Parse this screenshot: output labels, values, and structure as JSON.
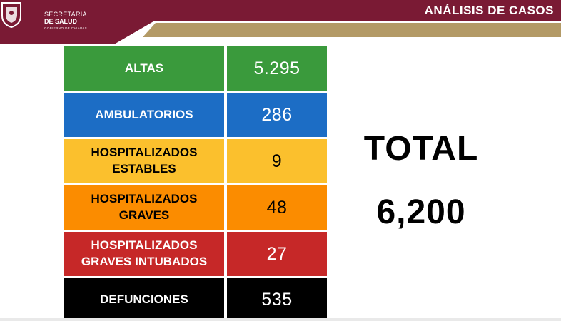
{
  "header": {
    "org_line1": "SECRETARÍA",
    "org_line2": "DE SALUD",
    "org_line3": "GOBIERNO DE CHIAPAS",
    "title": "ANÁLISIS DE CASOS",
    "colors": {
      "maroon": "#7a1a34",
      "gold": "#b39a66"
    }
  },
  "table": {
    "rows": [
      {
        "label": "ALTAS",
        "value": "5.295",
        "bg": "#3a9a3c",
        "fg": "#ffffff"
      },
      {
        "label": "AMBULATORIOS",
        "value": "286",
        "bg": "#1c6dc5",
        "fg": "#ffffff"
      },
      {
        "label": "HOSPITALIZADOS\nESTABLES",
        "value": "9",
        "bg": "#fbc02d",
        "fg": "#000000"
      },
      {
        "label": "HOSPITALIZADOS\nGRAVES",
        "value": "48",
        "bg": "#fb8c00",
        "fg": "#000000"
      },
      {
        "label": "HOSPITALIZADOS\nGRAVES INTUBADOS",
        "value": "27",
        "bg": "#c62828",
        "fg": "#ffffff"
      },
      {
        "label": "DEFUNCIONES",
        "value": "535",
        "bg": "#000000",
        "fg": "#ffffff"
      }
    ]
  },
  "total": {
    "label": "TOTAL",
    "value": "6,200"
  }
}
